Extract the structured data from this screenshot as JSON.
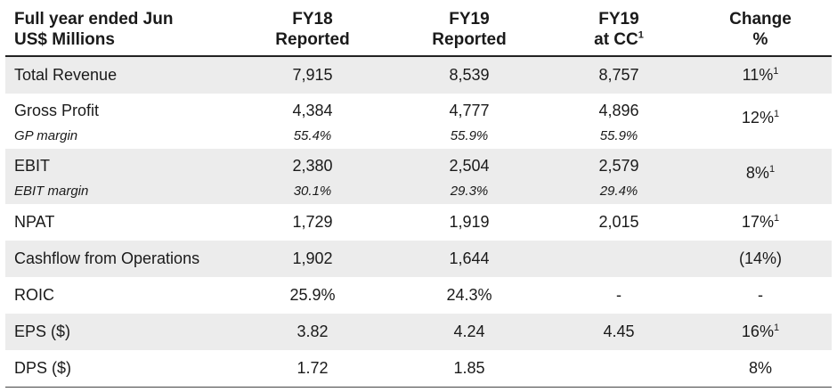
{
  "header": {
    "col0_line1": "Full year ended Jun",
    "col0_line2": "US$ Millions",
    "col1_line1": "FY18",
    "col1_line2": "Reported",
    "col2_line1": "FY19",
    "col2_line2": "Reported",
    "col3_line1": "FY19",
    "col3_line2": "at CC",
    "col3_sup": "1",
    "col4_line1": "Change",
    "col4_line2": "%"
  },
  "rows": {
    "total_revenue": {
      "label": "Total Revenue",
      "fy18": "7,915",
      "fy19": "8,539",
      "fy19cc": "8,757",
      "change": "11%",
      "change_sup": "1"
    },
    "gross_profit": {
      "label": "Gross Profit",
      "fy18": "4,384",
      "fy19": "4,777",
      "fy19cc": "4,896",
      "change": "12%",
      "change_sup": "1",
      "sub_label": "GP margin",
      "sub_fy18": "55.4%",
      "sub_fy19": "55.9%",
      "sub_fy19cc": "55.9%"
    },
    "ebit": {
      "label": "EBIT",
      "fy18": "2,380",
      "fy19": "2,504",
      "fy19cc": "2,579",
      "change": "8%",
      "change_sup": "1",
      "sub_label": "EBIT margin",
      "sub_fy18": "30.1%",
      "sub_fy19": "29.3%",
      "sub_fy19cc": "29.4%"
    },
    "npat": {
      "label": "NPAT",
      "fy18": "1,729",
      "fy19": "1,919",
      "fy19cc": "2,015",
      "change": "17%",
      "change_sup": "1"
    },
    "cashflow": {
      "label": "Cashflow from Operations",
      "fy18": "1,902",
      "fy19": "1,644",
      "fy19cc": "",
      "change": "(14%)"
    },
    "roic": {
      "label": "ROIC",
      "fy18": "25.9%",
      "fy19": "24.3%",
      "fy19cc": "-",
      "change": "-"
    },
    "eps": {
      "label": "EPS ($)",
      "fy18": "3.82",
      "fy19": "4.24",
      "fy19cc": "4.45",
      "change": "16%",
      "change_sup": "1"
    },
    "dps": {
      "label": "DPS ($)",
      "fy18": "1.72",
      "fy19": "1.85",
      "fy19cc": "",
      "change": "8%"
    }
  },
  "colors": {
    "shade": "#ececec",
    "rule": "#222222"
  }
}
